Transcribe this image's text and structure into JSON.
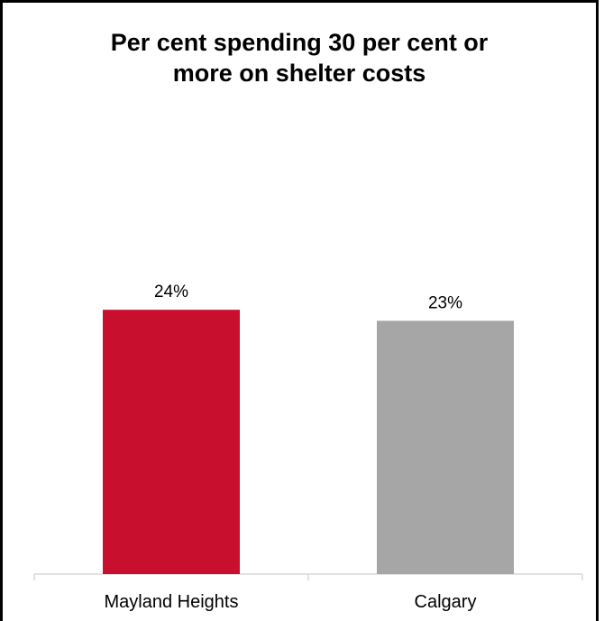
{
  "chart_data": {
    "type": "bar",
    "title": "Per cent spending 30 per cent or more on shelter costs",
    "title_lines": [
      "Per cent spending 30 per cent or",
      "more on shelter costs"
    ],
    "categories": [
      "Mayland Heights",
      "Calgary"
    ],
    "values": [
      24,
      23
    ],
    "data_labels": [
      "24%",
      "23%"
    ],
    "colors": [
      "#c8102e",
      "#a6a6a6"
    ],
    "xlabel": "",
    "ylabel": "",
    "ylim": [
      0,
      40
    ],
    "grid": false,
    "legend": "none"
  }
}
